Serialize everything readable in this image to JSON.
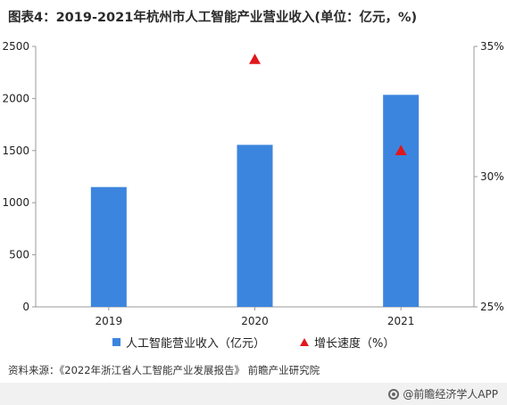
{
  "title": "图表4：2019-2021年杭州市人工智能产业营业收入(单位：亿元，%)",
  "source": "资料来源：《2022年浙江省人工智能产业发展报告》 前瞻产业研究院",
  "brand": "@前瞻经济学人APP",
  "legend": {
    "bar_label": "人工智能营业收入（亿元）",
    "line_label": "增长速度（%）"
  },
  "colors": {
    "bar": "#3c85de",
    "marker": "#e0171b",
    "axis": "#999999"
  },
  "chart_data": {
    "type": "bar",
    "categories": [
      "2019",
      "2020",
      "2021"
    ],
    "series": [
      {
        "name": "人工智能营业收入（亿元）",
        "axis": "left",
        "type": "bar",
        "values": [
          1150,
          1555,
          2035
        ]
      },
      {
        "name": "增长速度（%）",
        "axis": "right",
        "type": "scatter",
        "marker": "triangle",
        "values": [
          null,
          34.5,
          31.0
        ]
      }
    ],
    "ylim": [
      0,
      2500
    ],
    "yticks": [
      "0",
      "500",
      "1000",
      "1500",
      "2000",
      "2500"
    ],
    "y2lim": [
      25,
      35
    ],
    "y2ticks": [
      "25%",
      "30%",
      "35%"
    ],
    "legend_position": "bottom",
    "grid": false
  }
}
